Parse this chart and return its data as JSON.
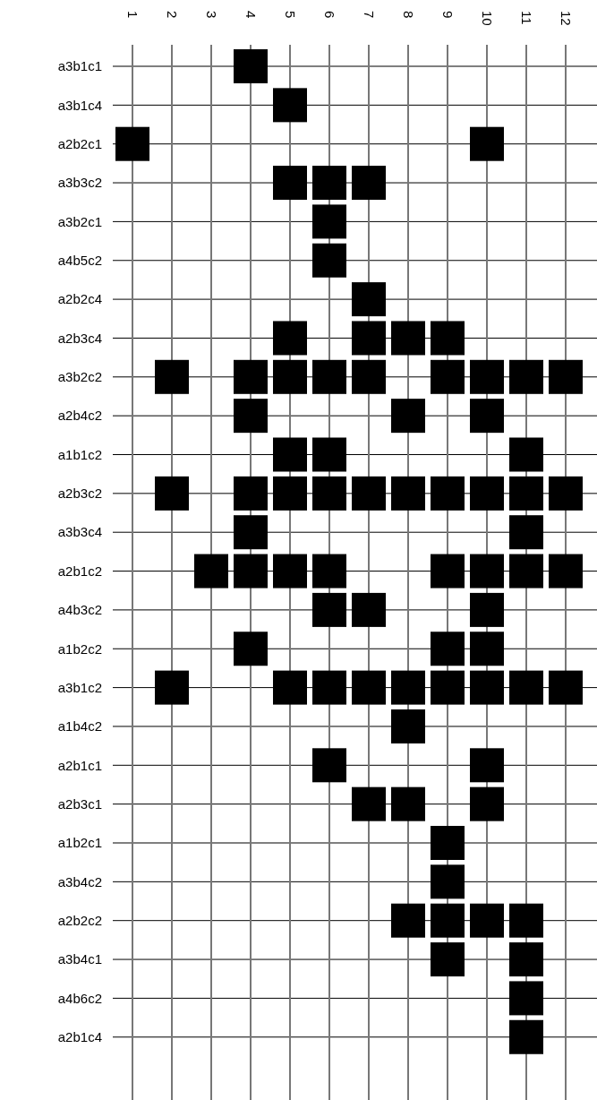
{
  "chart_data": {
    "type": "scatter",
    "orientation": "horizontal",
    "grid": true,
    "marker": "square",
    "xlim": [
      1,
      12
    ],
    "xticks": [
      1,
      2,
      3,
      4,
      5,
      6,
      7,
      8,
      9,
      10,
      11,
      12
    ],
    "categories": [
      "a3b1c1",
      "a3b1c4",
      "a2b2c1",
      "a3b3c2",
      "a3b2c1",
      "a4b5c2",
      "a2b2c4",
      "a2b3c4",
      "a3b2c2",
      "a2b4c2",
      "a1b1c2",
      "a2b3c2",
      "a3b3c4",
      "a2b1c2",
      "a4b3c2",
      "a1b2c2",
      "a3b1c2",
      "a1b4c2",
      "a2b1c1",
      "a2b3c1",
      "a1b2c1",
      "a3b4c2",
      "a2b2c2",
      "a3b4c1",
      "a4b6c2",
      "a2b1c4"
    ],
    "series": [
      {
        "color": "#000000",
        "values": [
          null,
          null,
          1,
          null,
          null,
          null,
          null,
          null,
          null,
          null,
          null,
          null,
          null,
          null,
          null,
          null,
          null,
          null,
          null,
          null,
          null,
          null,
          null,
          null,
          null,
          null
        ]
      },
      {
        "color": "#000000",
        "values": [
          null,
          null,
          null,
          null,
          null,
          null,
          null,
          null,
          2,
          null,
          null,
          2,
          null,
          null,
          null,
          null,
          2,
          null,
          null,
          null,
          null,
          null,
          null,
          null,
          null,
          null
        ]
      },
      {
        "color": "#000000",
        "values": [
          null,
          null,
          null,
          null,
          null,
          null,
          null,
          null,
          null,
          null,
          null,
          null,
          null,
          3,
          null,
          null,
          null,
          null,
          null,
          null,
          null,
          null,
          null,
          null,
          null,
          null
        ]
      },
      {
        "color": "#000000",
        "values": [
          4,
          null,
          null,
          null,
          null,
          null,
          null,
          null,
          4,
          4,
          null,
          4,
          4,
          4,
          null,
          4,
          null,
          null,
          null,
          null,
          null,
          null,
          null,
          null,
          null,
          null
        ]
      },
      {
        "color": "#000000",
        "values": [
          null,
          5,
          null,
          5,
          null,
          null,
          null,
          5,
          5,
          null,
          5,
          5,
          null,
          5,
          null,
          null,
          5,
          null,
          null,
          null,
          null,
          null,
          null,
          null,
          null,
          null
        ]
      },
      {
        "color": "#000000",
        "values": [
          null,
          null,
          null,
          6,
          6,
          6,
          null,
          null,
          6,
          null,
          6,
          6,
          null,
          6,
          6,
          null,
          6,
          null,
          6,
          null,
          null,
          null,
          null,
          null,
          null,
          null
        ]
      },
      {
        "color": "#000000",
        "values": [
          null,
          null,
          null,
          7,
          null,
          null,
          7,
          7,
          7,
          null,
          null,
          7,
          null,
          null,
          7,
          null,
          7,
          null,
          null,
          7,
          null,
          null,
          null,
          null,
          null,
          null
        ]
      },
      {
        "color": "#000000",
        "values": [
          null,
          null,
          null,
          null,
          null,
          null,
          null,
          8,
          null,
          8,
          null,
          8,
          null,
          null,
          null,
          null,
          8,
          8,
          null,
          8,
          null,
          null,
          8,
          null,
          null,
          null
        ]
      },
      {
        "color": "#000000",
        "values": [
          null,
          null,
          null,
          null,
          null,
          null,
          null,
          9,
          9,
          null,
          null,
          9,
          null,
          9,
          null,
          9,
          9,
          null,
          null,
          null,
          9,
          9,
          9,
          9,
          null,
          null
        ]
      },
      {
        "color": "#000000",
        "values": [
          null,
          null,
          10,
          null,
          null,
          null,
          null,
          null,
          10,
          10,
          null,
          10,
          null,
          10,
          10,
          10,
          10,
          null,
          10,
          10,
          null,
          null,
          10,
          null,
          null,
          null
        ]
      },
      {
        "color": "#000000",
        "values": [
          null,
          null,
          null,
          null,
          null,
          null,
          null,
          null,
          11,
          null,
          11,
          11,
          11,
          11,
          null,
          null,
          11,
          null,
          null,
          null,
          null,
          null,
          11,
          11,
          11,
          11
        ]
      },
      {
        "color": "#000000",
        "values": [
          null,
          null,
          null,
          null,
          null,
          null,
          null,
          null,
          12,
          null,
          null,
          12,
          null,
          12,
          null,
          null,
          12,
          null,
          null,
          null,
          null,
          null,
          null,
          null,
          null,
          null
        ]
      }
    ]
  }
}
